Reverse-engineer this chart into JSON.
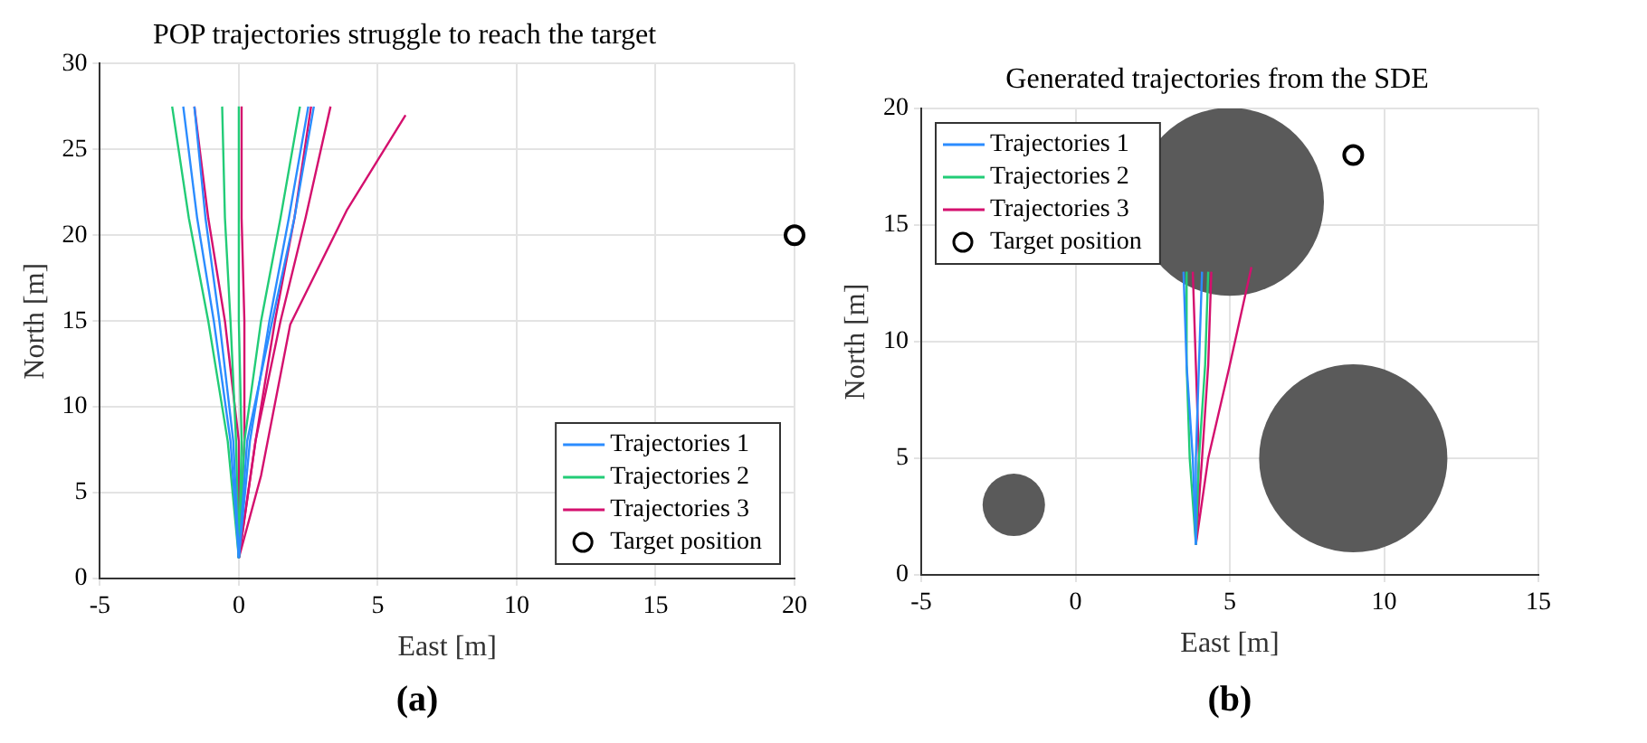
{
  "chart_data": [
    {
      "type": "line",
      "title": "POP trajectories struggle to reach the target",
      "xlabel": "East [m]",
      "ylabel": "North [m]",
      "xlim": [
        -5,
        20
      ],
      "xticks": [
        -5,
        0,
        5,
        10,
        15,
        20
      ],
      "ylim": [
        0,
        30
      ],
      "yticks": [
        0,
        5,
        10,
        15,
        20,
        25,
        30
      ],
      "grid": true,
      "legend": "bottom right",
      "marker": "none",
      "annotations": [
        "(a)"
      ],
      "series": [
        {
          "name": "Trajectories 1",
          "color": "#2b8cff",
          "x": [
            0,
            -0.3,
            -0.9,
            -1.5,
            -2.0
          ],
          "values": [
            1.2,
            8,
            15,
            21,
            27.5
          ]
        },
        {
          "color": "#2b8cff",
          "x": [
            0,
            -0.2,
            -0.7,
            -1.2,
            -1.6
          ],
          "values": [
            1.2,
            8,
            15,
            21,
            27.5
          ]
        },
        {
          "color": "#2b8cff",
          "x": [
            0,
            0.4,
            1.1,
            1.8,
            2.5
          ],
          "values": [
            1.2,
            8,
            15,
            21,
            27.5
          ]
        },
        {
          "color": "#2b8cff",
          "x": [
            0,
            0.3,
            1.2,
            2.0,
            2.7
          ],
          "values": [
            1.2,
            8,
            15,
            21,
            27.5
          ]
        },
        {
          "name": "Trajectories 2",
          "color": "#22cc77",
          "x": [
            0,
            -0.4,
            -1.1,
            -1.8,
            -2.4
          ],
          "values": [
            1.2,
            8,
            15,
            21,
            27.5
          ]
        },
        {
          "color": "#22cc77",
          "x": [
            0,
            -0.1,
            -0.3,
            -0.5,
            -0.6
          ],
          "values": [
            1.2,
            8,
            15,
            21,
            27.5
          ]
        },
        {
          "color": "#22cc77",
          "x": [
            0,
            0.1,
            0,
            0,
            0
          ],
          "values": [
            1.2,
            8,
            15,
            21,
            27.5
          ]
        },
        {
          "color": "#22cc77",
          "x": [
            0,
            0.2,
            0.8,
            1.5,
            2.2
          ],
          "values": [
            1.2,
            8,
            15,
            21,
            27.5
          ]
        },
        {
          "name": "Trajectories 3",
          "color": "#d4106e",
          "x": [
            0,
            0,
            -0.5,
            -1.1,
            -1.6
          ],
          "values": [
            1.2,
            8,
            15,
            21,
            27.5
          ]
        },
        {
          "color": "#d4106e",
          "x": [
            0,
            0.2,
            0.2,
            0.1,
            0.1
          ],
          "values": [
            1.2,
            8,
            15,
            21,
            27.5
          ]
        },
        {
          "color": "#d4106e",
          "x": [
            0,
            0.6,
            1.5,
            2.4,
            3.3
          ],
          "values": [
            1.2,
            8,
            15,
            21,
            27.5
          ]
        },
        {
          "color": "#d4106e",
          "x": [
            0,
            0.6,
            1.3,
            2.0,
            2.6
          ],
          "values": [
            1.2,
            8,
            15,
            21,
            27.5
          ]
        },
        {
          "color": "#d4106e",
          "x": [
            0,
            0.8,
            1.85,
            3.9,
            6.0
          ],
          "values": [
            1.2,
            6,
            14.8,
            21.5,
            27.0
          ]
        },
        {
          "name": "Target position",
          "type": "scatter",
          "marker": "circle",
          "color": "#000000",
          "x": [
            20
          ],
          "values": [
            20
          ]
        }
      ]
    },
    {
      "type": "line",
      "title": "Generated trajectories from the SDE",
      "xlabel": "East [m]",
      "ylabel": "North [m]",
      "xlim": [
        -5,
        15
      ],
      "xticks": [
        -5,
        0,
        5,
        10,
        15
      ],
      "ylim": [
        0,
        20
      ],
      "yticks": [
        0,
        5,
        10,
        15,
        20
      ],
      "grid": true,
      "legend": "top left",
      "marker": "none",
      "annotations": [
        "(b)"
      ],
      "series": [
        {
          "type": "bubble",
          "marker": "circle",
          "color": "#5a5a5a",
          "x": [
            5,
            9,
            -2
          ],
          "values": [
            16,
            5,
            3
          ],
          "sizes": [
            1,
            1,
            0.11
          ]
        },
        {
          "name": "Trajectories 1",
          "color": "#2b8cff",
          "x": [
            3.9,
            3.8,
            3.6,
            3.5
          ],
          "values": [
            1.3,
            5,
            9,
            13
          ]
        },
        {
          "color": "#2b8cff",
          "x": [
            3.9,
            3.9,
            4.0,
            4.1
          ],
          "values": [
            1.3,
            5,
            9,
            13
          ]
        },
        {
          "name": "Trajectories 2",
          "color": "#22cc77",
          "x": [
            3.9,
            3.7,
            3.6,
            3.6
          ],
          "values": [
            1.3,
            5,
            9,
            13
          ]
        },
        {
          "color": "#22cc77",
          "x": [
            3.9,
            4.0,
            4.2,
            4.3
          ],
          "values": [
            1.3,
            5,
            9,
            13
          ]
        },
        {
          "name": "Trajectories 3",
          "color": "#d4106e",
          "x": [
            3.9,
            4.1,
            4.3,
            4.4
          ],
          "values": [
            1.3,
            5,
            9,
            13
          ]
        },
        {
          "color": "#d4106e",
          "x": [
            3.9,
            4.3,
            5.0,
            5.7
          ],
          "values": [
            1.3,
            5,
            9,
            13.2
          ]
        },
        {
          "color": "#d4106e",
          "x": [
            3.9,
            4.0,
            3.9,
            3.8
          ],
          "values": [
            1.3,
            5,
            9,
            13
          ]
        },
        {
          "name": "Target position",
          "type": "scatter",
          "marker": "circle",
          "color": "#000000",
          "x": [
            9
          ],
          "values": [
            18
          ]
        }
      ]
    }
  ]
}
